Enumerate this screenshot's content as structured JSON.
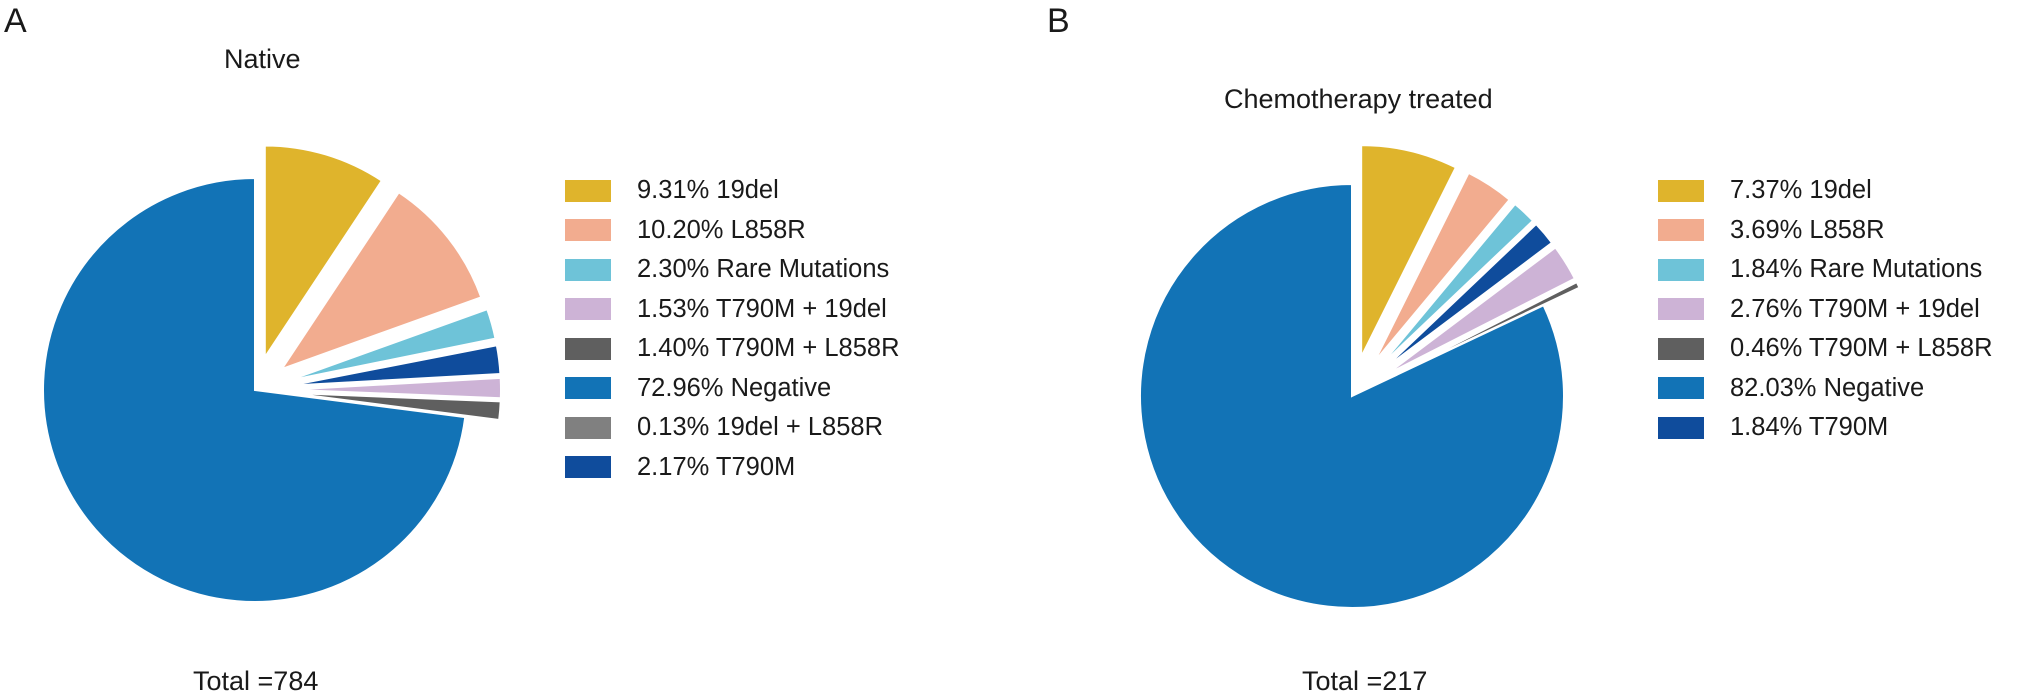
{
  "chart_data": [
    {
      "type": "pie",
      "panel_label": "A",
      "title": "Native",
      "total_label": "Total =784",
      "slices": [
        {
          "label": "9.31% 19del",
          "value": 9.31,
          "color": "#DFB42C"
        },
        {
          "label": "10.20% L858R",
          "value": 10.2,
          "color": "#F2AC8F"
        },
        {
          "label": "2.30% Rare Mutations",
          "value": 2.3,
          "color": "#6EC3D8"
        },
        {
          "label": "0.13% 19del + L858R",
          "value": 0.13,
          "color": "#808080"
        },
        {
          "label": "2.17% T790M",
          "value": 2.17,
          "color": "#0F4C9C"
        },
        {
          "label": "1.53% T790M + 19del",
          "value": 1.53,
          "color": "#CDB3D6"
        },
        {
          "label": "1.40% T790M + L858R",
          "value": 1.4,
          "color": "#5F5F5F"
        },
        {
          "label": "72.96% Negative",
          "value": 72.96,
          "color": "#1273B6"
        }
      ],
      "legend": [
        {
          "label": "9.31% 19del",
          "color": "#DFB42C"
        },
        {
          "label": "10.20% L858R",
          "color": "#F2AC8F"
        },
        {
          "label": "2.30% Rare Mutations",
          "color": "#6EC3D8"
        },
        {
          "label": "1.53% T790M + 19del",
          "color": "#CDB3D6"
        },
        {
          "label": "1.40% T790M + L858R",
          "color": "#5F5F5F"
        },
        {
          "label": "72.96% Negative",
          "color": "#1273B6"
        },
        {
          "label": "0.13% 19del + L858R",
          "color": "#808080"
        },
        {
          "label": "2.17% T790M",
          "color": "#0F4C9C"
        }
      ],
      "exploded": "all slices except Negative",
      "legend_position": "right"
    },
    {
      "type": "pie",
      "panel_label": "B",
      "title": "Chemotherapy treated",
      "total_label": "Total =217",
      "slices": [
        {
          "label": "7.37% 19del",
          "value": 7.37,
          "color": "#DFB42C"
        },
        {
          "label": "3.69% L858R",
          "value": 3.69,
          "color": "#F2AC8F"
        },
        {
          "label": "1.84% Rare Mutations",
          "value": 1.84,
          "color": "#6EC3D8"
        },
        {
          "label": "1.84% T790M",
          "value": 1.84,
          "color": "#0F4C9C"
        },
        {
          "label": "2.76% T790M + 19del",
          "value": 2.76,
          "color": "#CDB3D6"
        },
        {
          "label": "0.46% T790M + L858R",
          "value": 0.46,
          "color": "#5F5F5F"
        },
        {
          "label": "82.03% Negative",
          "value": 82.03,
          "color": "#1273B6"
        }
      ],
      "legend": [
        {
          "label": "7.37% 19del",
          "color": "#DFB42C"
        },
        {
          "label": "3.69% L858R",
          "color": "#F2AC8F"
        },
        {
          "label": "1.84% Rare Mutations",
          "color": "#6EC3D8"
        },
        {
          "label": "2.76% T790M + 19del",
          "color": "#CDB3D6"
        },
        {
          "label": "0.46% T790M + L858R",
          "color": "#5F5F5F"
        },
        {
          "label": "82.03% Negative",
          "color": "#1273B6"
        },
        {
          "label": "1.84% T790M",
          "color": "#0F4C9C"
        }
      ],
      "exploded": "all slices except Negative",
      "legend_position": "right"
    }
  ]
}
